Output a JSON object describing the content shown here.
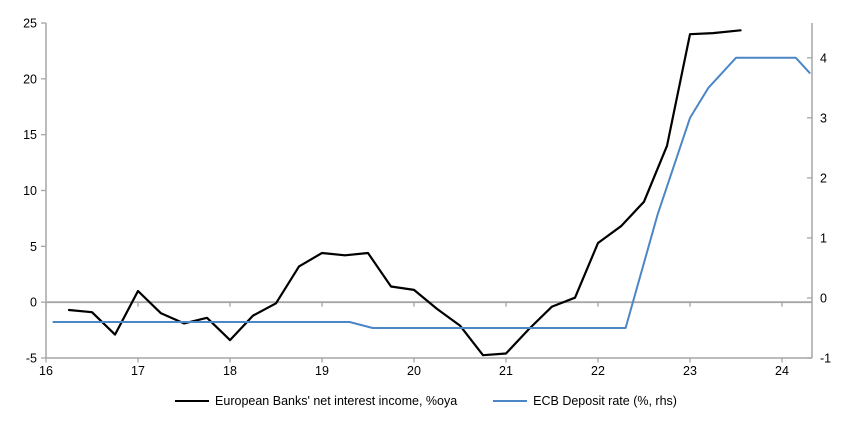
{
  "chart_data": {
    "type": "line",
    "title": "",
    "x_axis": {
      "tick_labels": [
        "16",
        "17",
        "18",
        "19",
        "20",
        "21",
        "22",
        "23",
        "24"
      ],
      "ticks": [
        16,
        17,
        18,
        19,
        20,
        21,
        22,
        23,
        24
      ],
      "range": [
        16,
        24.33
      ]
    },
    "left_axis": {
      "tick_labels": [
        "25",
        "20",
        "15",
        "10",
        "5",
        "0",
        "-5"
      ],
      "ticks": [
        25,
        20,
        15,
        10,
        5,
        0,
        -5
      ],
      "range": [
        -5,
        25
      ]
    },
    "right_axis": {
      "tick_labels": [
        "4",
        "3",
        "2",
        "1",
        "0",
        "-1"
      ],
      "ticks": [
        4,
        3,
        2,
        1,
        0,
        -1
      ],
      "range": [
        -1,
        4.58
      ]
    },
    "grid": "zero-line-only",
    "legend_position": "bottom-center",
    "series": [
      {
        "name": "European Banks' net interest income, %oya",
        "axis": "left",
        "color": "#000000",
        "line_width": 2.2,
        "points": [
          [
            16.25,
            -0.7
          ],
          [
            16.5,
            -0.9
          ],
          [
            16.75,
            -2.9
          ],
          [
            17.0,
            1.0
          ],
          [
            17.25,
            -1.0
          ],
          [
            17.5,
            -1.9
          ],
          [
            17.75,
            -1.4
          ],
          [
            18.0,
            -3.4
          ],
          [
            18.25,
            -1.2
          ],
          [
            18.5,
            -0.1
          ],
          [
            18.75,
            3.2
          ],
          [
            19.0,
            4.4
          ],
          [
            19.25,
            4.2
          ],
          [
            19.5,
            4.4
          ],
          [
            19.75,
            1.4
          ],
          [
            20.0,
            1.1
          ],
          [
            20.25,
            -0.6
          ],
          [
            20.5,
            -2.1
          ],
          [
            20.75,
            -4.75
          ],
          [
            21.0,
            -4.6
          ],
          [
            21.25,
            -2.4
          ],
          [
            21.5,
            -0.4
          ],
          [
            21.75,
            0.4
          ],
          [
            22.0,
            5.3
          ],
          [
            22.25,
            6.8
          ],
          [
            22.5,
            9.0
          ],
          [
            22.75,
            14.0
          ],
          [
            23.0,
            24.0
          ],
          [
            23.25,
            24.1
          ],
          [
            23.55,
            24.35
          ]
        ]
      },
      {
        "name": "ECB Deposit rate (%, rhs)",
        "axis": "right",
        "color": "#4d86c6",
        "line_width": 2,
        "points": [
          [
            16.08,
            -0.4
          ],
          [
            19.3,
            -0.4
          ],
          [
            19.55,
            -0.5
          ],
          [
            22.3,
            -0.5
          ],
          [
            22.65,
            1.4
          ],
          [
            23.0,
            3.0
          ],
          [
            23.2,
            3.5
          ],
          [
            23.5,
            4.0
          ],
          [
            24.15,
            4.0
          ],
          [
            24.3,
            3.75
          ]
        ]
      }
    ],
    "colors": {
      "axis": "#a6a6a6",
      "zero_line": "#a6a6a6",
      "tick_text": "#000000"
    }
  },
  "legend": {
    "items": [
      {
        "label": "European Banks' net interest income, %oya"
      },
      {
        "label": "ECB Deposit rate (%, rhs)"
      }
    ]
  }
}
